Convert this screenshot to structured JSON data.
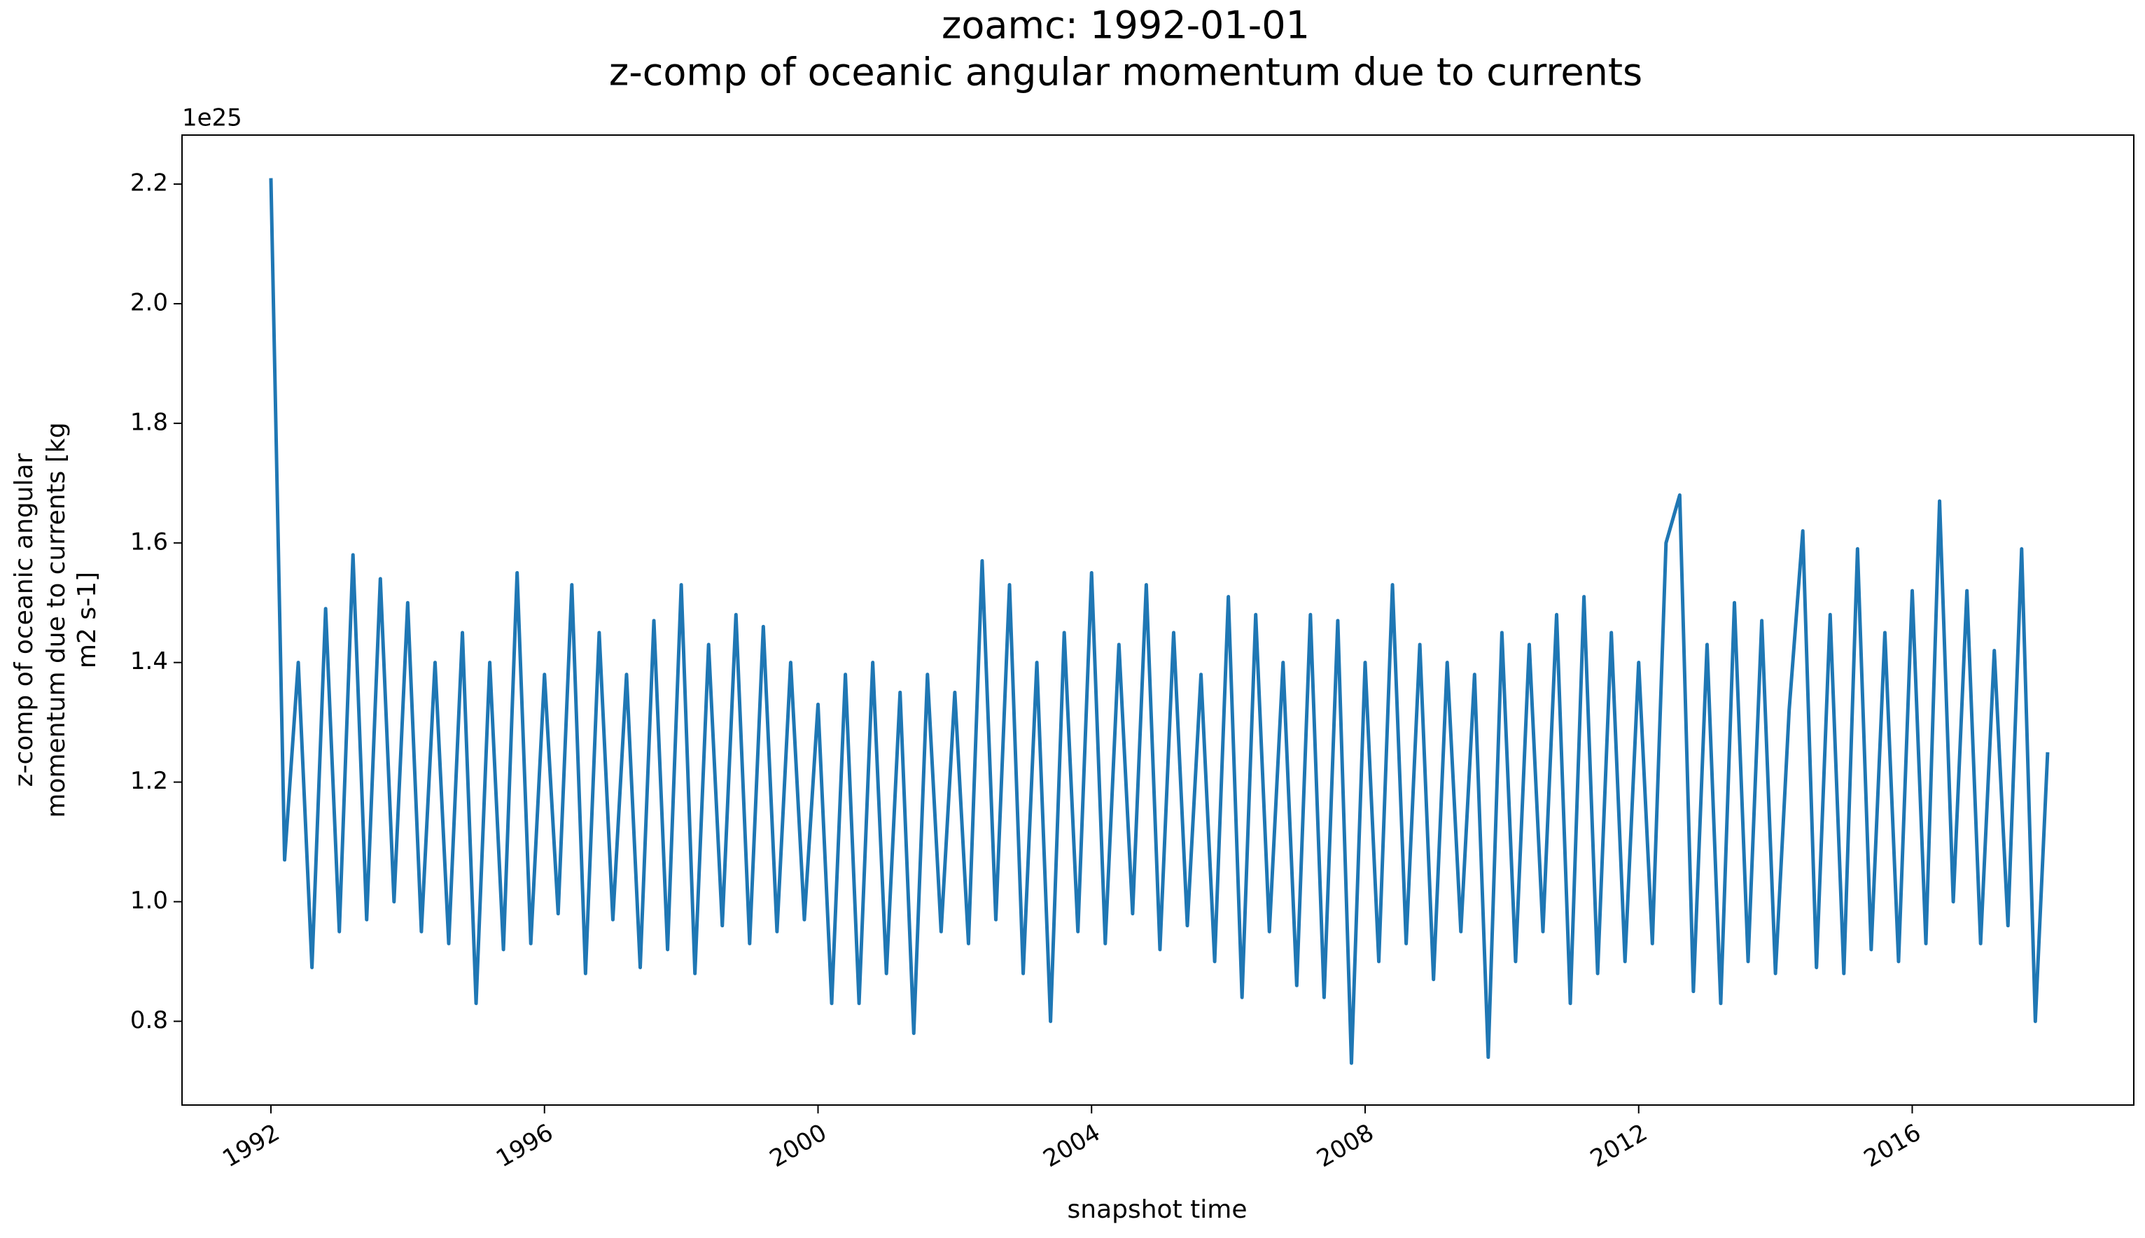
{
  "chart_data": {
    "type": "line",
    "title": [
      "zoamc: 1992-01-01",
      "z-comp of oceanic angular momentum due to currents"
    ],
    "xlabel": "snapshot time",
    "ylabel": [
      "z-comp of oceanic angular",
      "momentum due to currents [kg",
      "m2 s-1]"
    ],
    "offset_label": "1e25",
    "x": [
      1992.0,
      1992.2,
      1992.4,
      1992.6,
      1992.8,
      1993.0,
      1993.2,
      1993.4,
      1993.6,
      1993.8,
      1994.0,
      1994.2,
      1994.4,
      1994.6,
      1994.8,
      1995.0,
      1995.2,
      1995.4,
      1995.6,
      1995.8,
      1996.0,
      1996.2,
      1996.4,
      1996.6,
      1996.8,
      1997.0,
      1997.2,
      1997.4,
      1997.6,
      1997.8,
      1998.0,
      1998.2,
      1998.4,
      1998.6,
      1998.8,
      1999.0,
      1999.2,
      1999.4,
      1999.6,
      1999.8,
      2000.0,
      2000.2,
      2000.4,
      2000.6,
      2000.8,
      2001.0,
      2001.2,
      2001.4,
      2001.6,
      2001.8,
      2002.0,
      2002.2,
      2002.4,
      2002.6,
      2002.8,
      2003.0,
      2003.2,
      2003.4,
      2003.6,
      2003.8,
      2004.0,
      2004.2,
      2004.4,
      2004.6,
      2004.8,
      2005.0,
      2005.2,
      2005.4,
      2005.6,
      2005.8,
      2006.0,
      2006.2,
      2006.4,
      2006.6,
      2006.8,
      2007.0,
      2007.2,
      2007.4,
      2007.6,
      2007.8,
      2008.0,
      2008.2,
      2008.4,
      2008.6,
      2008.8,
      2009.0,
      2009.2,
      2009.4,
      2009.6,
      2009.8,
      2010.0,
      2010.2,
      2010.4,
      2010.6,
      2010.8,
      2011.0,
      2011.2,
      2011.4,
      2011.6,
      2011.8,
      2012.0,
      2012.2,
      2012.4,
      2012.6,
      2012.8,
      2013.0,
      2013.2,
      2013.4,
      2013.6,
      2013.8,
      2014.0,
      2014.2,
      2014.4,
      2014.6,
      2014.8,
      2015.0,
      2015.2,
      2015.4,
      2015.6,
      2015.8,
      2016.0,
      2016.2,
      2016.4,
      2016.6,
      2016.8,
      2017.0,
      2017.2,
      2017.4,
      2017.6,
      2017.8,
      2017.98
    ],
    "series": [
      {
        "name": "zoamc",
        "color": "#1f77b4",
        "values": [
          2.21,
          1.07,
          1.4,
          0.89,
          1.49,
          0.95,
          1.58,
          0.97,
          1.54,
          1.0,
          1.5,
          0.95,
          1.4,
          0.93,
          1.45,
          0.83,
          1.4,
          0.92,
          1.55,
          0.93,
          1.38,
          0.98,
          1.53,
          0.88,
          1.45,
          0.97,
          1.38,
          0.89,
          1.47,
          0.92,
          1.53,
          0.88,
          1.43,
          0.96,
          1.48,
          0.93,
          1.46,
          0.95,
          1.4,
          0.97,
          1.33,
          0.83,
          1.38,
          0.83,
          1.4,
          0.88,
          1.35,
          0.78,
          1.38,
          0.95,
          1.35,
          0.93,
          1.57,
          0.97,
          1.53,
          0.88,
          1.4,
          0.8,
          1.45,
          0.95,
          1.55,
          0.93,
          1.43,
          0.98,
          1.53,
          0.92,
          1.45,
          0.96,
          1.38,
          0.9,
          1.51,
          0.84,
          1.48,
          0.95,
          1.4,
          0.86,
          1.48,
          0.84,
          1.47,
          0.73,
          1.4,
          0.9,
          1.53,
          0.93,
          1.43,
          0.87,
          1.4,
          0.95,
          1.38,
          0.74,
          1.45,
          0.9,
          1.43,
          0.95,
          1.48,
          0.83,
          1.51,
          0.88,
          1.45,
          0.9,
          1.4,
          0.93,
          1.6,
          1.68,
          0.85,
          1.43,
          0.83,
          1.5,
          0.9,
          1.47,
          0.88,
          1.32,
          1.62,
          0.89,
          1.48,
          0.88,
          1.59,
          0.92,
          1.45,
          0.9,
          1.52,
          0.93,
          1.67,
          1.0,
          1.52,
          0.93,
          1.42,
          0.96,
          1.59,
          0.8,
          1.25
        ]
      }
    ],
    "xlim": [
      1990.7,
      2019.24
    ],
    "xticks": [
      1992,
      1996,
      2000,
      2004,
      2008,
      2012,
      2016
    ],
    "ylim": [
      0.66,
      2.282
    ],
    "yticks": [
      0.8,
      {
        "value": 1,
        "label": "1.0"
      },
      1.2,
      1.4,
      1.6,
      1.8,
      {
        "value": 2,
        "label": "2.0"
      },
      2.2
    ],
    "grid": false
  }
}
